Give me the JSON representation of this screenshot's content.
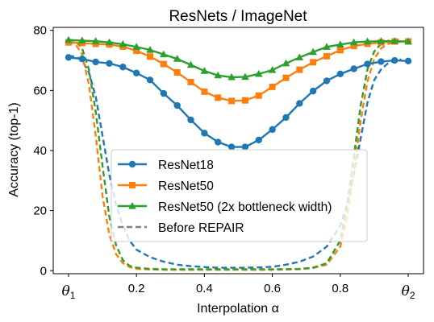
{
  "chart_data": {
    "type": "line",
    "title": "ResNets / ImageNet",
    "xlabel": "Interpolation α",
    "ylabel": "Accuracy (top-1)",
    "xlim": [
      -0.045,
      1.045
    ],
    "ylim": [
      -1,
      81
    ],
    "xticks": [
      {
        "value": 0.0,
        "label": "θ",
        "sub": "1"
      },
      {
        "value": 0.2,
        "label": "0.2"
      },
      {
        "value": 0.4,
        "label": "0.4"
      },
      {
        "value": 0.6,
        "label": "0.6"
      },
      {
        "value": 0.8,
        "label": "0.8"
      },
      {
        "value": 1.0,
        "label": "θ",
        "sub": "2"
      }
    ],
    "yticks": [
      0,
      20,
      40,
      60,
      80
    ],
    "grid": false,
    "legend_position": "lower-center",
    "legend": [
      {
        "label": "ResNet18",
        "color": "#1f77b4",
        "marker": "circle",
        "style": "solid"
      },
      {
        "label": "ResNet50",
        "color": "#ff7f0e",
        "marker": "square",
        "style": "solid"
      },
      {
        "label": "ResNet50 (2x bottleneck width)",
        "color": "#2ca02c",
        "marker": "triangle",
        "style": "solid"
      },
      {
        "label": "Before REPAIR",
        "color": "#7f7f7f",
        "marker": "none",
        "style": "dashed"
      }
    ],
    "x": [
      0.0,
      0.04,
      0.08,
      0.12,
      0.16,
      0.2,
      0.24,
      0.28,
      0.32,
      0.36,
      0.4,
      0.44,
      0.48,
      0.52,
      0.56,
      0.6,
      0.64,
      0.68,
      0.72,
      0.76,
      0.8,
      0.84,
      0.88,
      0.92,
      0.96,
      1.0
    ],
    "series": [
      {
        "name": "ResNet18",
        "color": "#1f77b4",
        "marker": "circle",
        "style": "solid",
        "values": [
          71.0,
          70.5,
          69.5,
          69.0,
          67.8,
          65.8,
          63.5,
          59.0,
          55.0,
          50.2,
          45.8,
          42.8,
          41.2,
          41.2,
          43.5,
          47.0,
          51.0,
          55.7,
          59.8,
          63.2,
          65.5,
          67.2,
          68.8,
          69.6,
          70.0,
          69.8
        ]
      },
      {
        "name": "ResNet50",
        "color": "#ff7f0e",
        "marker": "square",
        "style": "solid",
        "values": [
          76.0,
          75.8,
          75.5,
          75.3,
          74.6,
          73.2,
          71.3,
          68.8,
          66.0,
          62.8,
          59.6,
          57.6,
          56.5,
          56.7,
          58.3,
          61.2,
          64.2,
          66.9,
          69.4,
          71.4,
          73.4,
          74.8,
          75.5,
          76.0,
          76.3,
          76.3
        ]
      },
      {
        "name": "ResNet50 (2x bottleneck width)",
        "color": "#2ca02c",
        "marker": "triangle",
        "style": "solid",
        "values": [
          76.8,
          76.6,
          76.4,
          76.0,
          75.4,
          74.5,
          73.5,
          72.0,
          70.5,
          68.5,
          66.5,
          65.0,
          64.4,
          64.5,
          65.5,
          66.8,
          69.0,
          71.0,
          72.8,
          74.5,
          75.3,
          76.0,
          76.3,
          76.4,
          76.4,
          76.3
        ]
      },
      {
        "name": "ResNet18 before REPAIR",
        "color": "#1f77b4",
        "style": "dashed",
        "x": [
          0.0,
          0.02,
          0.04,
          0.06,
          0.08,
          0.1,
          0.12,
          0.14,
          0.16,
          0.18,
          0.2,
          0.24,
          0.28,
          0.32,
          0.36,
          0.4,
          0.44,
          0.48,
          0.52,
          0.56,
          0.6,
          0.64,
          0.68,
          0.72,
          0.76,
          0.8,
          0.82,
          0.84,
          0.86,
          0.88,
          0.9,
          0.92,
          0.94,
          0.96,
          0.98
        ],
        "values": [
          71.5,
          71.3,
          70.0,
          66.0,
          58.0,
          45.0,
          32.0,
          22.0,
          15.0,
          10.0,
          7.0,
          4.5,
          3.0,
          2.0,
          1.5,
          1.2,
          1.0,
          1.0,
          1.0,
          1.1,
          1.3,
          2.0,
          3.0,
          4.7,
          8.0,
          15.0,
          22.0,
          32.0,
          44.0,
          56.0,
          63.5,
          67.0,
          69.0,
          70.0,
          70.3
        ]
      },
      {
        "name": "ResNet50 before REPAIR",
        "color": "#ff7f0e",
        "style": "dashed",
        "x": [
          0.0,
          0.02,
          0.04,
          0.06,
          0.08,
          0.1,
          0.12,
          0.14,
          0.16,
          0.18,
          0.2,
          0.24,
          0.28,
          0.32,
          0.36,
          0.4,
          0.44,
          0.48,
          0.52,
          0.56,
          0.6,
          0.64,
          0.68,
          0.72,
          0.76,
          0.8,
          0.82,
          0.84,
          0.86,
          0.88,
          0.9,
          0.92,
          0.94,
          0.96,
          0.98
        ],
        "values": [
          76.3,
          75.5,
          72.0,
          62.0,
          45.0,
          25.0,
          12.0,
          5.5,
          2.5,
          1.2,
          0.6,
          0.4,
          0.3,
          0.3,
          0.3,
          0.3,
          0.3,
          0.3,
          0.3,
          0.3,
          0.3,
          0.4,
          0.5,
          0.9,
          2.0,
          8.0,
          18.0,
          33.0,
          50.0,
          63.0,
          70.5,
          74.0,
          75.5,
          76.0,
          76.2
        ]
      },
      {
        "name": "ResNet50 (2x bottleneck width) before REPAIR",
        "color": "#2ca02c",
        "style": "dashed",
        "x": [
          0.0,
          0.02,
          0.04,
          0.06,
          0.08,
          0.1,
          0.12,
          0.14,
          0.16,
          0.18,
          0.2,
          0.24,
          0.28,
          0.32,
          0.36,
          0.4,
          0.44,
          0.48,
          0.52,
          0.56,
          0.6,
          0.64,
          0.68,
          0.72,
          0.76,
          0.8,
          0.82,
          0.84,
          0.86,
          0.88,
          0.9,
          0.92,
          0.94,
          0.96,
          0.98
        ],
        "values": [
          77.0,
          76.5,
          74.0,
          67.0,
          53.0,
          35.0,
          18.0,
          8.5,
          3.5,
          1.6,
          1.0,
          0.6,
          0.5,
          0.5,
          0.5,
          0.5,
          0.5,
          0.5,
          0.5,
          0.5,
          0.5,
          0.5,
          0.6,
          1.0,
          2.5,
          10.0,
          22.0,
          38.0,
          55.0,
          67.0,
          73.0,
          75.5,
          76.5,
          76.8,
          76.8
        ]
      }
    ]
  }
}
